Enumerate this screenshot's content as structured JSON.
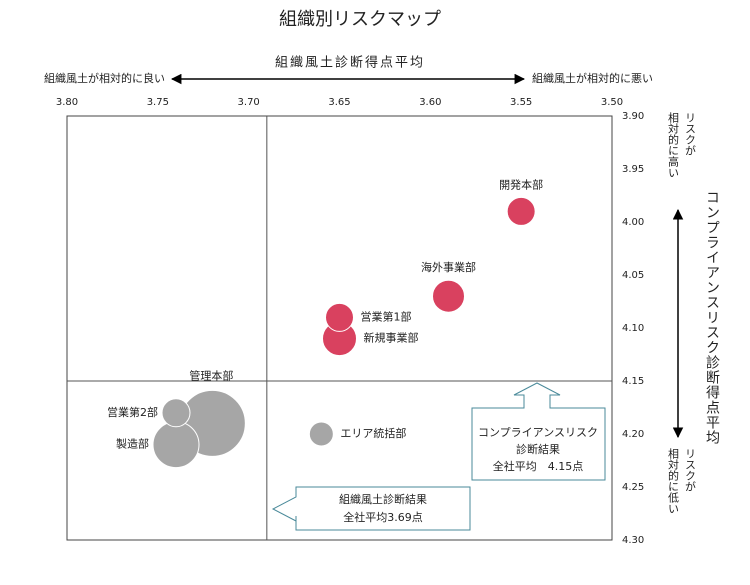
{
  "chart_data": {
    "type": "bubble",
    "title": "組織別リスクマップ",
    "x_label": "組織風土診断得点平均",
    "y_label": "コンプライアンスリスク診断得点平均",
    "x_left_note": "組織風土が相対的に良い",
    "x_right_note": "組織風土が相対的に悪い",
    "y_top_note": [
      "リスクが",
      "相対的に高い"
    ],
    "y_bottom_note": [
      "リスクが",
      "相対的に低い"
    ],
    "xlim": [
      3.8,
      3.5
    ],
    "xticks": [
      {
        "value": 3.8,
        "label": "3.80"
      },
      {
        "value": 3.75,
        "label": "3.75"
      },
      {
        "value": 3.7,
        "label": "3.70"
      },
      {
        "value": 3.65,
        "label": "3.65"
      },
      {
        "value": 3.6,
        "label": "3.60"
      },
      {
        "value": 3.55,
        "label": "3.55"
      },
      {
        "value": 3.5,
        "label": "3.50"
      }
    ],
    "ylim": [
      3.9,
      4.3
    ],
    "yticks": [
      {
        "value": 3.9,
        "label": "3.90"
      },
      {
        "value": 3.95,
        "label": "3.95"
      },
      {
        "value": 4.0,
        "label": "4.00"
      },
      {
        "value": 4.05,
        "label": "4.05"
      },
      {
        "value": 4.1,
        "label": "4.10"
      },
      {
        "value": 4.15,
        "label": "4.15"
      },
      {
        "value": 4.2,
        "label": "4.20"
      },
      {
        "value": 4.25,
        "label": "4.25"
      },
      {
        "value": 4.3,
        "label": "4.30"
      }
    ],
    "x_average": 3.69,
    "y_average": 4.15,
    "y_average_note": [
      "コンプライアンスリスク",
      "診断結果",
      "全社平均　4.15点"
    ],
    "x_average_note": [
      "組織風土診断結果",
      "全社平均3.69点"
    ],
    "points": [
      {
        "label": "開発本部",
        "x": 3.55,
        "y": 3.99,
        "size": 14,
        "color": "#d9415f"
      },
      {
        "label": "海外事業部",
        "x": 3.59,
        "y": 4.07,
        "size": 16,
        "color": "#d9415f"
      },
      {
        "label": "新規事業部",
        "x": 3.65,
        "y": 4.11,
        "size": 17,
        "color": "#d9415f"
      },
      {
        "label": "営業第1部",
        "x": 3.65,
        "y": 4.09,
        "size": 14,
        "color": "#d9415f"
      },
      {
        "label": "管理本部",
        "x": 3.72,
        "y": 4.19,
        "size": 33,
        "color": "#a6a6a6"
      },
      {
        "label": "製造部",
        "x": 3.74,
        "y": 4.21,
        "size": 23,
        "color": "#a6a6a6"
      },
      {
        "label": "営業第2部",
        "x": 3.74,
        "y": 4.18,
        "size": 14,
        "color": "#a6a6a6"
      },
      {
        "label": "エリア統括部",
        "x": 3.66,
        "y": 4.2,
        "size": 12,
        "color": "#a6a6a6"
      }
    ]
  }
}
